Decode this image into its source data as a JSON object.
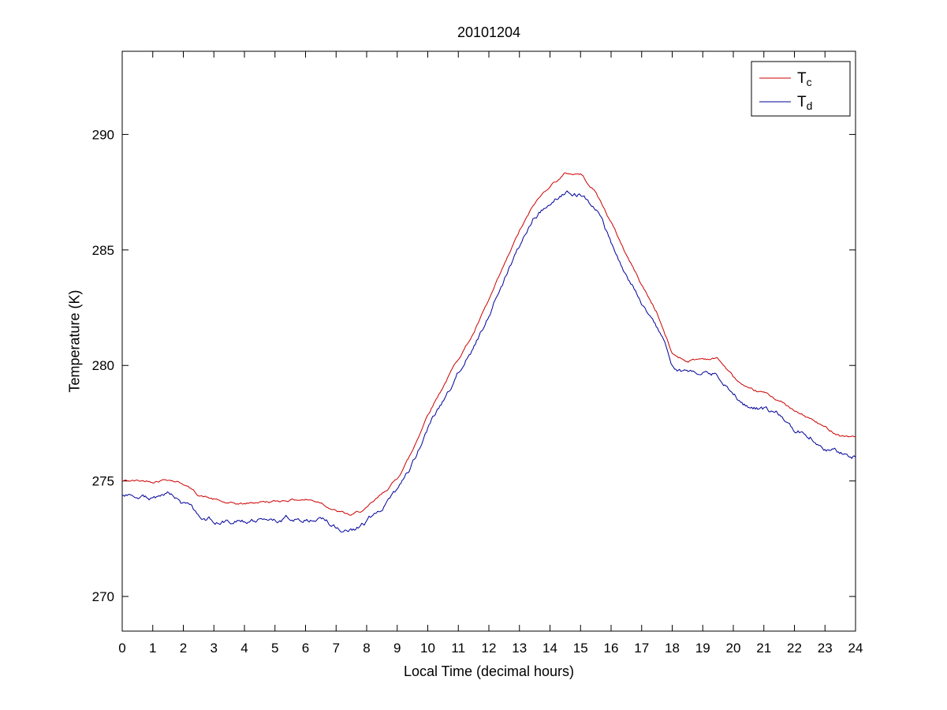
{
  "figure": {
    "background": "#ffffff",
    "axis_color": "#000000"
  },
  "chart_data": {
    "type": "line",
    "title": "20101204",
    "xlabel": "Local Time (decimal hours)",
    "ylabel": "Temperature (K)",
    "xlim": [
      0,
      24
    ],
    "ylim": [
      268.5,
      293.6
    ],
    "xticks": [
      0,
      1,
      2,
      3,
      4,
      5,
      6,
      7,
      8,
      9,
      10,
      11,
      12,
      13,
      14,
      15,
      16,
      17,
      18,
      19,
      20,
      21,
      22,
      23,
      24
    ],
    "yticks": [
      270,
      275,
      280,
      285,
      290
    ],
    "grid": false,
    "legend_position": "top-right",
    "x": [
      0,
      0.5,
      1,
      1.5,
      2,
      2.5,
      3,
      3.5,
      4,
      4.5,
      5,
      5.5,
      6,
      6.5,
      7,
      7.5,
      8,
      8.5,
      9,
      9.5,
      10,
      10.5,
      11,
      11.5,
      12,
      12.5,
      13,
      13.5,
      14,
      14.5,
      15,
      15.5,
      16,
      16.5,
      17,
      17.5,
      18,
      18.5,
      19,
      19.5,
      20,
      20.5,
      21,
      21.5,
      22,
      22.5,
      23,
      23.5,
      24
    ],
    "series": [
      {
        "name": "T_c",
        "color": "#cc0000",
        "noise": 0.045,
        "values": [
          275.0,
          275.0,
          275.0,
          275.1,
          274.9,
          274.4,
          274.2,
          274.0,
          274.0,
          274.1,
          274.1,
          274.2,
          274.2,
          274.1,
          273.7,
          273.5,
          273.8,
          274.4,
          275.1,
          276.3,
          277.9,
          279.1,
          280.3,
          281.4,
          282.8,
          284.3,
          285.8,
          287.0,
          287.8,
          288.3,
          288.3,
          287.5,
          286.2,
          284.8,
          283.5,
          282.3,
          280.5,
          280.2,
          280.3,
          280.3,
          279.5,
          278.9,
          278.8,
          278.5,
          278.0,
          277.7,
          277.3,
          277.0,
          276.9
        ]
      },
      {
        "name": "T_d",
        "color": "#000099",
        "noise": 0.09,
        "values": [
          274.3,
          274.3,
          274.3,
          274.4,
          274.0,
          273.5,
          273.3,
          273.3,
          273.3,
          273.3,
          273.3,
          273.4,
          273.4,
          273.3,
          273.0,
          272.9,
          273.2,
          273.8,
          274.5,
          275.7,
          277.3,
          278.5,
          279.7,
          280.8,
          282.2,
          283.7,
          285.2,
          286.5,
          287.1,
          287.5,
          287.4,
          286.8,
          285.3,
          283.9,
          282.8,
          281.7,
          280.0,
          279.6,
          279.7,
          279.6,
          278.7,
          278.2,
          278.1,
          277.9,
          277.2,
          277.0,
          276.4,
          276.2,
          276.1
        ]
      }
    ]
  }
}
